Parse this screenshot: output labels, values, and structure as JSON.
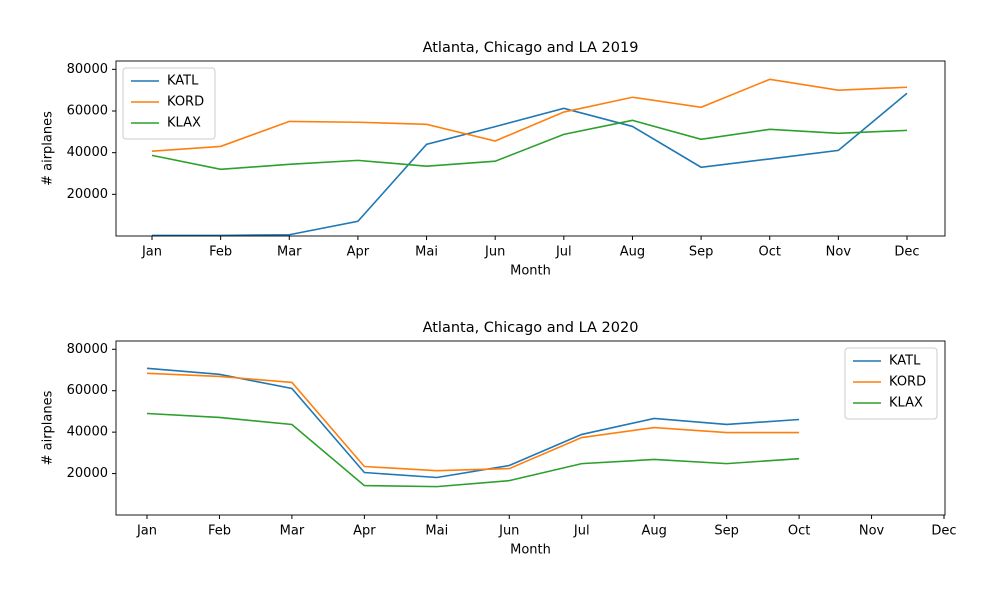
{
  "chart_data": [
    {
      "type": "line",
      "title": "Atlanta, Chicago and LA 2019",
      "xlabel": "Month",
      "ylabel": "# airplanes",
      "categories": [
        "Jan",
        "Feb",
        "Mar",
        "Apr",
        "Mai",
        "Jun",
        "Jul",
        "Aug",
        "Sep",
        "Oct",
        "Nov",
        "Dec"
      ],
      "series": [
        {
          "name": "KATL",
          "color": "#1f77b4",
          "values": [
            300,
            300,
            600,
            7050,
            44000,
            52500,
            61300,
            52600,
            33000,
            37000,
            41100,
            68500
          ]
        },
        {
          "name": "KORD",
          "color": "#ff7f0e",
          "values": [
            40700,
            43000,
            55000,
            54600,
            53600,
            45600,
            59500,
            66600,
            61800,
            75200,
            70000,
            71400
          ]
        },
        {
          "name": "KLAX",
          "color": "#2ca02c",
          "values": [
            38700,
            32000,
            34400,
            36300,
            33500,
            35900,
            48800,
            55500,
            46400,
            51200,
            49300,
            50700
          ]
        }
      ],
      "ylim": [
        0,
        84000
      ],
      "yticks": [
        20000,
        40000,
        60000,
        80000
      ],
      "legend": "upper left"
    },
    {
      "type": "line",
      "title": "Atlanta, Chicago and LA 2020",
      "xlabel": "Month",
      "ylabel": "# airplanes",
      "categories": [
        "Jan",
        "Feb",
        "Mar",
        "Apr",
        "Mai",
        "Jun",
        "Jul",
        "Aug",
        "Sep",
        "Oct",
        "Nov",
        "Dec"
      ],
      "series": [
        {
          "name": "KATL",
          "color": "#1f77b4",
          "values": [
            70800,
            67900,
            61100,
            20500,
            18100,
            23900,
            38900,
            46600,
            43700,
            46100,
            null,
            null
          ]
        },
        {
          "name": "KORD",
          "color": "#ff7f0e",
          "values": [
            68400,
            66900,
            64000,
            23400,
            21400,
            22400,
            37400,
            42200,
            39800,
            39800,
            null,
            null
          ]
        },
        {
          "name": "KLAX",
          "color": "#2ca02c",
          "values": [
            49000,
            47100,
            43700,
            14200,
            13700,
            16600,
            24800,
            26800,
            24800,
            27200,
            null,
            null
          ]
        }
      ],
      "ylim": [
        0,
        84000
      ],
      "yticks": [
        20000,
        40000,
        60000,
        80000
      ],
      "legend": "upper right"
    }
  ]
}
